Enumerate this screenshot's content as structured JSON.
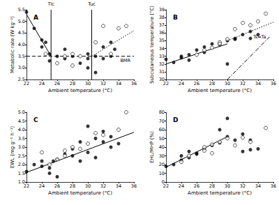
{
  "chart_data": [
    {
      "type": "scatter",
      "title": "A",
      "xlabel": "Ambient temperature (°C)",
      "ylabel": "Metabolic rate (W kg⁻¹)",
      "xlim": [
        22,
        36
      ],
      "xticks": [
        22,
        24,
        26,
        28,
        30,
        32,
        34,
        36
      ],
      "ylim": [
        2.5,
        5.5
      ],
      "yticks": [
        2.5,
        {
          "value": 3,
          "label": "3.0"
        },
        3.5,
        {
          "value": 4,
          "label": "4.0"
        },
        4.5,
        {
          "value": 5,
          "label": "5.0"
        },
        5.5
      ],
      "grid": false,
      "series": [
        {
          "marker": "filled",
          "color": "#000000",
          "x": [
            22,
            23,
            24,
            24,
            24.5,
            25,
            25,
            26,
            27,
            27,
            28,
            29,
            30,
            30,
            30,
            31,
            31,
            32,
            32,
            33,
            33,
            33.5
          ],
          "values": [
            5.4,
            4.7,
            4.2,
            3.9,
            4.1,
            3.6,
            3.3,
            3.5,
            3.8,
            3.4,
            3.5,
            3.2,
            3.6,
            3.4,
            3.0,
            2.8,
            3.5,
            3.4,
            3.9,
            3.5,
            4.1,
            3.8
          ]
        },
        {
          "marker": "open",
          "color": "#ffffff",
          "x": [
            24.5,
            26,
            27,
            28,
            28,
            29,
            31,
            32,
            33,
            34,
            35
          ],
          "values": [
            3.6,
            3.2,
            3.5,
            3.6,
            3.1,
            3.5,
            4.1,
            4.8,
            3.6,
            4.7,
            4.8
          ]
        }
      ],
      "lines": [
        {
          "x": [
            22,
            25.2
          ],
          "values": [
            5.3,
            3.5
          ],
          "line_style": "solid"
        },
        {
          "x": [
            30.5,
            36
          ],
          "values": [
            3.5,
            4.6
          ],
          "line_style": "dotted"
        },
        {
          "x": [
            22,
            36
          ],
          "values": [
            3.5,
            3.5
          ],
          "line_style": "dashed",
          "label": "BMR"
        },
        {
          "x": [
            25.2,
            25.2
          ],
          "values": [
            2.5,
            5.5
          ],
          "line_style": "solid",
          "label": "Tlc"
        },
        {
          "x": [
            30.5,
            30.5
          ],
          "values": [
            2.5,
            5.5
          ],
          "line_style": "solid",
          "label": "Tuc"
        }
      ]
    },
    {
      "type": "scatter",
      "title": "B",
      "xlabel": "Ambient temperature (°C)",
      "ylabel": "Subcutaneous temperature (°C)",
      "xlim": [
        22,
        36
      ],
      "xticks": [
        22,
        24,
        26,
        28,
        30,
        32,
        34,
        36
      ],
      "ylim": [
        30,
        39
      ],
      "yticks": [
        30,
        31,
        32,
        33,
        34,
        35,
        36,
        37,
        38,
        39
      ],
      "grid": false,
      "series": [
        {
          "marker": "filled",
          "color": "#000000",
          "x": [
            22,
            23,
            24,
            24,
            25,
            25,
            26,
            27,
            27,
            28,
            29,
            30,
            30,
            31,
            31,
            32,
            33,
            33,
            34
          ],
          "values": [
            32.6,
            32.2,
            32.8,
            33.0,
            32.5,
            33.2,
            33.8,
            33.5,
            34.2,
            34.6,
            34.5,
            32.0,
            35.0,
            35.3,
            35.2,
            35.8,
            35.3,
            36.2,
            35.8
          ]
        },
        {
          "marker": "open",
          "color": "#ffffff",
          "x": [
            26,
            27,
            28,
            29,
            29,
            30,
            31,
            32,
            33,
            34,
            35
          ],
          "values": [
            33.2,
            33.8,
            34.1,
            34.8,
            34.6,
            35.2,
            36.5,
            37.3,
            37.0,
            37.5,
            38.5
          ]
        }
      ],
      "lines": [
        {
          "x": [
            22,
            30
          ],
          "values": [
            32.0,
            34.6
          ],
          "line_style": "solid"
        },
        {
          "x": [
            30,
            36
          ],
          "values": [
            35.0,
            37.4
          ],
          "line_style": "dotted"
        },
        {
          "x": [
            30,
            35.5
          ],
          "values": [
            30,
            35.5
          ],
          "line_style": "dashdot",
          "label": "Ts=Ta"
        }
      ]
    },
    {
      "type": "scatter",
      "title": "C",
      "xlabel": "Ambient temperature (°C)",
      "ylabel": "EWL (mg g⁻¹ h⁻¹)",
      "xlim": [
        22,
        36
      ],
      "xticks": [
        22,
        24,
        26,
        28,
        30,
        32,
        34,
        36
      ],
      "ylim": [
        1,
        5
      ],
      "yticks": [
        {
          "value": 1,
          "label": "1.0"
        },
        1.5,
        {
          "value": 2,
          "label": "2.0"
        },
        2.5,
        {
          "value": 3,
          "label": "3.0"
        },
        3.5,
        {
          "value": 4,
          "label": "4.0"
        },
        4.5,
        {
          "value": 5,
          "label": "5.0"
        }
      ],
      "grid": false,
      "series": [
        {
          "marker": "filled",
          "color": "#000000",
          "x": [
            22,
            23,
            24,
            24,
            25,
            25,
            25.5,
            26,
            26,
            27,
            28,
            28,
            29,
            29,
            30,
            30,
            31,
            31,
            32,
            32,
            33,
            33,
            34
          ],
          "values": [
            1.6,
            2.0,
            1.9,
            2.2,
            1.8,
            1.5,
            2.2,
            1.3,
            2.3,
            2.6,
            2.5,
            2.9,
            2.2,
            3.3,
            4.2,
            2.7,
            3.5,
            2.4,
            3.3,
            3.9,
            3.0,
            3.6,
            3.2
          ]
        },
        {
          "marker": "open",
          "color": "#ffffff",
          "x": [
            24,
            25,
            26,
            27,
            27,
            28,
            29,
            30,
            31,
            32,
            34,
            35
          ],
          "values": [
            2.7,
            2.0,
            2.3,
            2.5,
            2.8,
            3.0,
            2.9,
            3.2,
            3.8,
            3.7,
            4.0,
            5.0
          ]
        }
      ],
      "lines": [
        {
          "x": [
            22,
            36
          ],
          "values": [
            1.55,
            3.85
          ],
          "line_style": "solid"
        }
      ]
    },
    {
      "type": "scatter",
      "title": "D",
      "xlabel": "Ambient temperature (°C)",
      "ylabel": "EHL/MHP (%)",
      "xlim": [
        22,
        36
      ],
      "xticks": [
        22,
        24,
        26,
        28,
        30,
        32,
        34,
        36
      ],
      "ylim": [
        0,
        80
      ],
      "yticks": [
        0,
        10,
        20,
        30,
        40,
        50,
        60,
        70,
        80
      ],
      "grid": false,
      "series": [
        {
          "marker": "filled",
          "color": "#000000",
          "x": [
            22,
            23,
            24,
            24,
            25,
            25,
            26,
            26,
            27,
            28,
            29,
            29,
            30,
            30,
            31,
            32,
            32,
            33,
            33,
            34
          ],
          "values": [
            18,
            20,
            30,
            25,
            28,
            35,
            32,
            33,
            38,
            42,
            45,
            60,
            73,
            52,
            48,
            35,
            55,
            48,
            37,
            38
          ]
        },
        {
          "marker": "open",
          "color": "#ffffff",
          "x": [
            24,
            25,
            27,
            27,
            28,
            28,
            29,
            30,
            31,
            32,
            33,
            35
          ],
          "values": [
            23,
            30,
            36,
            40,
            43,
            33,
            46,
            50,
            42,
            51,
            46,
            62
          ]
        }
      ],
      "lines": [
        {
          "x": [
            22,
            30
          ],
          "values": [
            17,
            52
          ],
          "line_style": "solid"
        }
      ]
    }
  ]
}
